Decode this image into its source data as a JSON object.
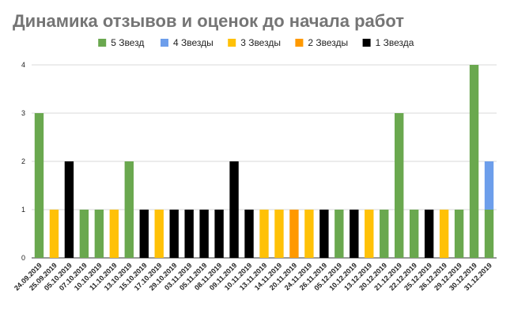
{
  "chart_data": {
    "type": "bar",
    "stacked": true,
    "title": "Динамика отзывов и оценок до начала работ",
    "xlabel": "",
    "ylabel": "",
    "ylim": [
      0,
      4
    ],
    "yticks": [
      "0",
      "1",
      "2",
      "3",
      "4"
    ],
    "grid": true,
    "legend_position": "top",
    "categories": [
      "24.09.2019",
      "25.09.2019",
      "05.10.2019",
      "07.10.2019",
      "10.10.2019",
      "11.10.2019",
      "13.10.2019",
      "15.10.2019",
      "17.10.2019",
      "29.10.2019",
      "03.11.2019",
      "05.11.2019",
      "08.11.2019",
      "09.11.2019",
      "10.11.2019",
      "13.11.2019",
      "14.11.2019",
      "20.11.2019",
      "24.11.2019",
      "26.11.2019",
      "05.12.2019",
      "10.12.2019",
      "13.12.2019",
      "20.12.2019",
      "21.12.2019",
      "22.12.2019",
      "25.12.2019",
      "26.12.2019",
      "29.12.2019",
      "30.12.2019",
      "31.12.2019"
    ],
    "series": [
      {
        "name": "5 Звезд",
        "color": "#6aa84f",
        "values": [
          3,
          0,
          0,
          1,
          1,
          0,
          2,
          0,
          0,
          0,
          0,
          0,
          0,
          0,
          0,
          0,
          0,
          0,
          0,
          0,
          1,
          0,
          0,
          1,
          3,
          1,
          0,
          0,
          1,
          4,
          1
        ]
      },
      {
        "name": "4 Звезды",
        "color": "#6d9eeb",
        "values": [
          0,
          0,
          0,
          0,
          0,
          0,
          0,
          0,
          0,
          0,
          0,
          0,
          0,
          0,
          0,
          0,
          0,
          0,
          0,
          0,
          0,
          0,
          0,
          0,
          0,
          0,
          0,
          0,
          0,
          0,
          1
        ]
      },
      {
        "name": "3 Звезды",
        "color": "#ffc107",
        "values": [
          0,
          1,
          0,
          0,
          0,
          1,
          0,
          0,
          1,
          0,
          0,
          0,
          0,
          0,
          0,
          1,
          1,
          0,
          1,
          0,
          0,
          0,
          1,
          0,
          0,
          0,
          0,
          1,
          0,
          0,
          0
        ]
      },
      {
        "name": "2 Звезды",
        "color": "#ff9900",
        "values": [
          0,
          0,
          0,
          0,
          0,
          0,
          0,
          0,
          0,
          0,
          0,
          0,
          0,
          0,
          0,
          0,
          0,
          1,
          0,
          0,
          0,
          0,
          0,
          0,
          0,
          0,
          0,
          0,
          0,
          0,
          0
        ]
      },
      {
        "name": "1 Звезда",
        "color": "#000000",
        "values": [
          0,
          0,
          2,
          0,
          0,
          0,
          0,
          1,
          0,
          1,
          1,
          1,
          1,
          2,
          1,
          0,
          0,
          0,
          0,
          1,
          0,
          1,
          0,
          0,
          0,
          0,
          1,
          0,
          0,
          0,
          0
        ]
      }
    ]
  }
}
